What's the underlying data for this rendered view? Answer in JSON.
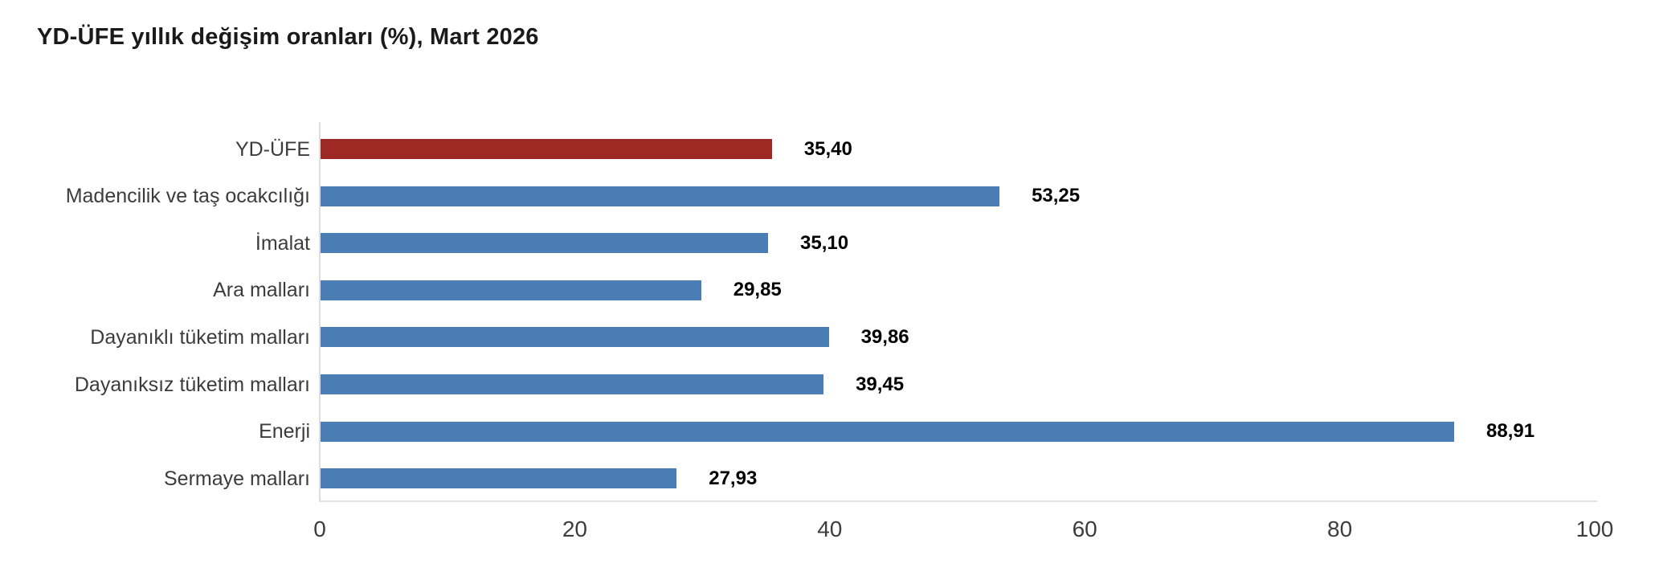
{
  "title": "YD-ÜFE yıllık değişim oranları (%), Mart 2026",
  "chart_data": {
    "type": "bar",
    "orientation": "horizontal",
    "title": "YD-ÜFE yıllık değişim oranları (%), Mart 2026",
    "categories": [
      "YD-ÜFE",
      "Madencilik ve taş ocakcılığı",
      "İmalat",
      "Ara malları",
      "Dayanıklı tüketim malları",
      "Dayanıksız tüketim malları",
      "Enerji",
      "Sermaye malları"
    ],
    "values": [
      35.4,
      53.25,
      35.1,
      29.85,
      39.86,
      39.45,
      88.91,
      27.93
    ],
    "value_labels": [
      "35,40",
      "53,25",
      "35,10",
      "29,85",
      "39,86",
      "39,45",
      "88,91",
      "27,93"
    ],
    "bar_colors": [
      "#9e2823",
      "#4a7db4",
      "#4a7db4",
      "#4a7db4",
      "#4a7db4",
      "#4a7db4",
      "#4a7db4",
      "#4a7db4"
    ],
    "highlight_category": "YD-ÜFE",
    "colors": {
      "highlight": "#9e2823",
      "default": "#4a7db4",
      "axis_line": "#dedede",
      "category_text": "#3c3c3c",
      "value_text": "#000000",
      "tick_text": "#3d3d3d"
    },
    "xlabel": "",
    "ylabel": "",
    "xlim": [
      0,
      100
    ],
    "x_ticks": [
      0,
      20,
      40,
      60,
      80,
      100
    ],
    "grid": false,
    "legend": "none",
    "value_label_position": "right-of-bar"
  }
}
